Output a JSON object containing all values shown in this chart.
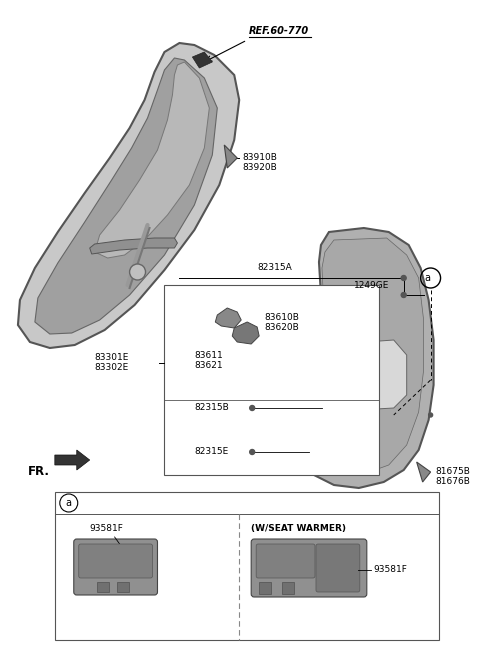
{
  "bg_color": "#ffffff",
  "labels": {
    "REF_60_770": "REF.60-770",
    "83910B": "83910B",
    "83920B": "83920B",
    "82315A": "82315A",
    "1249GE": "1249GE",
    "83610B": "83610B",
    "83620B": "83620B",
    "83611": "83611",
    "83621": "83621",
    "83301E": "83301E",
    "83302E": "83302E",
    "82315B": "82315B",
    "82315E": "82315E",
    "81675B": "81675B",
    "81676B": "81676B",
    "FR": "FR.",
    "circle_a": "a",
    "93581F_1": "93581F",
    "93581F_2": "93581F",
    "w_seat": "(W/SEAT WARMER)"
  },
  "font_size_label": 6.5,
  "font_size_ref": 7.0,
  "line_color": "#000000",
  "dark_gray": "#666666",
  "mid_gray": "#888888",
  "light_gray": "#aaaaaa",
  "very_light_gray": "#cccccc"
}
